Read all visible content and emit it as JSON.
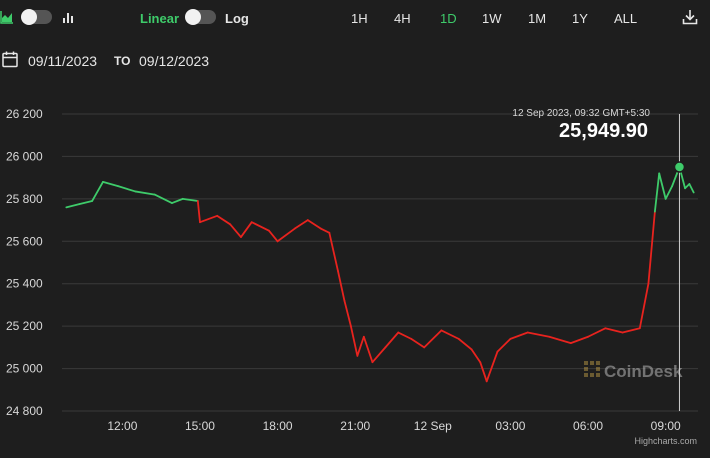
{
  "toolbar": {
    "linear_label": "Linear",
    "log_label": "Log",
    "ranges": [
      "1H",
      "4H",
      "1D",
      "1W",
      "1M",
      "1Y",
      "ALL"
    ],
    "active_range": "1D",
    "active_color": "#3ecb6a"
  },
  "date_range": {
    "from": "09/11/2023",
    "to_label": "TO",
    "to": "09/12/2023"
  },
  "tooltip": {
    "timestamp": "12 Sep 2023, 09:32 GMT+5:30",
    "value": "25,949.90"
  },
  "watermark": "CoinDesk",
  "credit": "Highcharts.com",
  "colors": {
    "up": "#3ecb6a",
    "down": "#e8231e",
    "background": "#1e1e1e"
  },
  "chart_data": {
    "type": "line",
    "title": "",
    "xlabel": "",
    "ylabel": "",
    "y_ticks": [
      "24 800",
      "25 000",
      "25 200",
      "25 400",
      "25 600",
      "25 800",
      "26 000",
      "26 200"
    ],
    "x_ticks": [
      "12:00",
      "15:00",
      "18:00",
      "21:00",
      "12 Sep",
      "03:00",
      "06:00",
      "09:00"
    ],
    "ylim": [
      24800,
      26200
    ],
    "xlim": [
      "2023-09-11 09:40",
      "2023-09-12 10:15"
    ],
    "grid": "horizontal",
    "series": [
      {
        "points": [
          [
            "2023-09-11 09:50",
            25760
          ],
          [
            "2023-09-11 10:20",
            25775
          ],
          [
            "2023-09-11 10:50",
            25790
          ],
          [
            "2023-09-11 11:15",
            25880
          ],
          [
            "2023-09-11 11:50",
            25860
          ],
          [
            "2023-09-11 12:30",
            25835
          ],
          [
            "2023-09-11 13:15",
            25820
          ],
          [
            "2023-09-11 13:55",
            25780
          ],
          [
            "2023-09-11 14:20",
            25800
          ],
          [
            "2023-09-11 14:55",
            25790
          ],
          [
            "2023-09-11 15:00",
            25690
          ],
          [
            "2023-09-11 15:40",
            25720
          ],
          [
            "2023-09-11 16:10",
            25680
          ],
          [
            "2023-09-11 16:35",
            25620
          ],
          [
            "2023-09-11 17:00",
            25690
          ],
          [
            "2023-09-11 17:40",
            25650
          ],
          [
            "2023-09-11 18:00",
            25600
          ],
          [
            "2023-09-11 18:40",
            25660
          ],
          [
            "2023-09-11 19:10",
            25700
          ],
          [
            "2023-09-11 19:40",
            25660
          ],
          [
            "2023-09-11 20:00",
            25640
          ],
          [
            "2023-09-11 20:20",
            25460
          ],
          [
            "2023-09-11 20:35",
            25320
          ],
          [
            "2023-09-11 20:50",
            25200
          ],
          [
            "2023-09-11 21:05",
            25060
          ],
          [
            "2023-09-11 21:20",
            25150
          ],
          [
            "2023-09-11 21:40",
            25030
          ],
          [
            "2023-09-11 22:10",
            25100
          ],
          [
            "2023-09-11 22:40",
            25170
          ],
          [
            "2023-09-11 23:10",
            25140
          ],
          [
            "2023-09-11 23:40",
            25100
          ],
          [
            "2023-09-12 00:20",
            25180
          ],
          [
            "2023-09-12 01:00",
            25140
          ],
          [
            "2023-09-12 01:30",
            25090
          ],
          [
            "2023-09-12 01:50",
            25030
          ],
          [
            "2023-09-12 02:05",
            24940
          ],
          [
            "2023-09-12 02:30",
            25080
          ],
          [
            "2023-09-12 03:00",
            25140
          ],
          [
            "2023-09-12 03:40",
            25170
          ],
          [
            "2023-09-12 04:30",
            25150
          ],
          [
            "2023-09-12 05:20",
            25120
          ],
          [
            "2023-09-12 06:00",
            25150
          ],
          [
            "2023-09-12 06:40",
            25190
          ],
          [
            "2023-09-12 07:20",
            25170
          ],
          [
            "2023-09-12 08:00",
            25190
          ],
          [
            "2023-09-12 08:20",
            25400
          ],
          [
            "2023-09-12 08:35",
            25740
          ],
          [
            "2023-09-12 08:45",
            25920
          ],
          [
            "2023-09-12 09:00",
            25800
          ],
          [
            "2023-09-12 09:15",
            25860
          ],
          [
            "2023-09-12 09:32",
            25949.9
          ],
          [
            "2023-09-12 09:45",
            25850
          ],
          [
            "2023-09-12 09:55",
            25870
          ],
          [
            "2023-09-12 10:05",
            25830
          ]
        ]
      }
    ]
  }
}
